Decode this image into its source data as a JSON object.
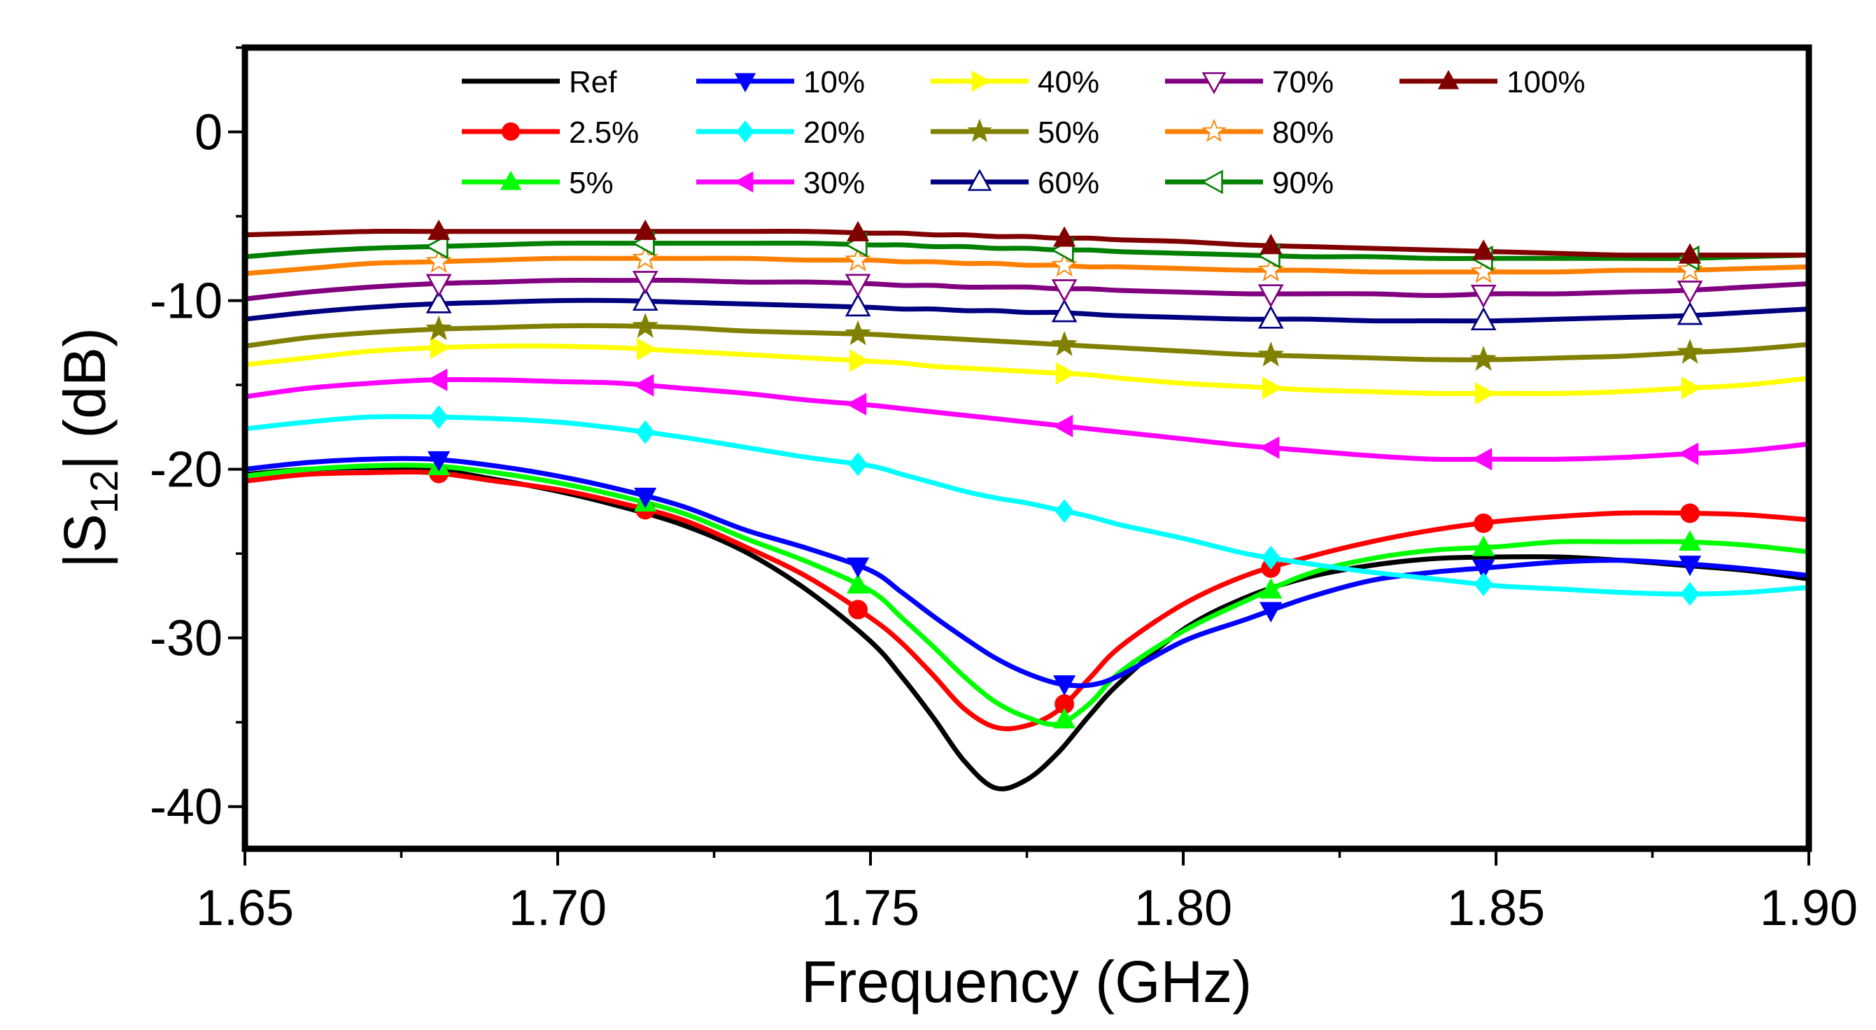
{
  "chart_data": {
    "type": "line",
    "xlabel": "Frequency (GHz)",
    "ylabel_prefix": "|S",
    "ylabel_sub": "12",
    "ylabel_suffix": "| (dB)",
    "xlim": [
      1.65,
      1.9
    ],
    "ylim": [
      -42.5,
      5
    ],
    "xticks": [
      1.65,
      1.7,
      1.75,
      1.8,
      1.85,
      1.9
    ],
    "xtick_labels": [
      "1.65",
      "1.70",
      "1.75",
      "1.80",
      "1.85",
      "1.90"
    ],
    "yticks": [
      0,
      -10,
      -20,
      -30,
      -40
    ],
    "ytick_labels": [
      "0",
      "-10",
      "-20",
      "-30",
      "-40"
    ],
    "x": [
      1.65,
      1.66,
      1.67,
      1.68,
      1.69,
      1.7,
      1.71,
      1.72,
      1.73,
      1.74,
      1.75,
      1.755,
      1.76,
      1.765,
      1.77,
      1.775,
      1.78,
      1.785,
      1.79,
      1.8,
      1.81,
      1.82,
      1.83,
      1.84,
      1.85,
      1.86,
      1.87,
      1.88,
      1.89,
      1.9
    ],
    "marker_x": [
      1.681,
      1.714,
      1.748,
      1.781,
      1.814,
      1.848,
      1.881
    ],
    "series": [
      {
        "name": "Ref",
        "color": "#000000",
        "marker": "none",
        "values": [
          -20.3,
          -20.0,
          -19.9,
          -20.0,
          -20.6,
          -21.3,
          -22.2,
          -23.3,
          -24.9,
          -27.2,
          -30.2,
          -32.3,
          -34.7,
          -37.3,
          -38.9,
          -38.4,
          -36.8,
          -34.6,
          -32.6,
          -29.5,
          -27.6,
          -26.4,
          -25.7,
          -25.3,
          -25.2,
          -25.2,
          -25.4,
          -25.7,
          -26.0,
          -26.5
        ]
      },
      {
        "name": "2.5%",
        "color": "#ff0000",
        "marker": "circle",
        "values": [
          -20.7,
          -20.3,
          -20.2,
          -20.2,
          -20.7,
          -21.2,
          -22.0,
          -23.0,
          -24.6,
          -26.4,
          -28.8,
          -30.3,
          -32.2,
          -34.2,
          -35.3,
          -35.2,
          -34.3,
          -32.4,
          -30.5,
          -28.0,
          -26.3,
          -25.2,
          -24.3,
          -23.6,
          -23.1,
          -22.8,
          -22.6,
          -22.6,
          -22.7,
          -23.0
        ]
      },
      {
        "name": "5%",
        "color": "#00ff00",
        "marker": "triangle-up",
        "values": [
          -20.4,
          -20.0,
          -19.8,
          -19.8,
          -20.2,
          -20.8,
          -21.6,
          -22.6,
          -24.1,
          -25.5,
          -27.2,
          -28.8,
          -30.5,
          -32.3,
          -33.8,
          -34.7,
          -35.1,
          -33.9,
          -32.0,
          -29.6,
          -27.8,
          -26.2,
          -25.3,
          -24.8,
          -24.6,
          -24.3,
          -24.3,
          -24.3,
          -24.5,
          -24.9
        ]
      },
      {
        "name": "10%",
        "color": "#0000ff",
        "marker": "triangle-down",
        "values": [
          -20.0,
          -19.6,
          -19.4,
          -19.4,
          -19.8,
          -20.4,
          -21.2,
          -22.2,
          -23.6,
          -24.7,
          -26.0,
          -27.3,
          -28.7,
          -30.0,
          -31.2,
          -32.1,
          -32.7,
          -32.8,
          -32.2,
          -30.2,
          -28.9,
          -27.6,
          -26.6,
          -26.1,
          -25.8,
          -25.5,
          -25.4,
          -25.6,
          -25.9,
          -26.3
        ]
      },
      {
        "name": "20%",
        "color": "#00ffff",
        "marker": "diamond",
        "values": [
          -17.6,
          -17.2,
          -16.9,
          -16.9,
          -17.0,
          -17.2,
          -17.6,
          -18.1,
          -18.7,
          -19.3,
          -19.8,
          -20.3,
          -20.8,
          -21.3,
          -21.7,
          -22.0,
          -22.4,
          -22.8,
          -23.3,
          -24.1,
          -25.0,
          -25.6,
          -26.1,
          -26.5,
          -26.9,
          -27.1,
          -27.3,
          -27.4,
          -27.3,
          -27.0
        ]
      },
      {
        "name": "30%",
        "color": "#ff00ff",
        "marker": "triangle-left",
        "values": [
          -15.7,
          -15.2,
          -14.9,
          -14.7,
          -14.7,
          -14.8,
          -14.9,
          -15.2,
          -15.5,
          -15.9,
          -16.2,
          -16.4,
          -16.6,
          -16.8,
          -17.0,
          -17.2,
          -17.4,
          -17.6,
          -17.8,
          -18.2,
          -18.6,
          -18.9,
          -19.2,
          -19.4,
          -19.4,
          -19.4,
          -19.3,
          -19.1,
          -18.9,
          -18.5
        ]
      },
      {
        "name": "40%",
        "color": "#ffff00",
        "marker": "triangle-right",
        "values": [
          -13.8,
          -13.4,
          -13.0,
          -12.8,
          -12.7,
          -12.7,
          -12.8,
          -13.0,
          -13.2,
          -13.4,
          -13.6,
          -13.7,
          -13.9,
          -14.0,
          -14.1,
          -14.2,
          -14.3,
          -14.4,
          -14.6,
          -14.9,
          -15.1,
          -15.3,
          -15.4,
          -15.5,
          -15.5,
          -15.5,
          -15.4,
          -15.2,
          -15.0,
          -14.6
        ]
      },
      {
        "name": "50%",
        "color": "#808000",
        "marker": "star",
        "values": [
          -12.7,
          -12.2,
          -11.9,
          -11.7,
          -11.6,
          -11.5,
          -11.5,
          -11.6,
          -11.8,
          -11.9,
          -12.0,
          -12.1,
          -12.2,
          -12.3,
          -12.4,
          -12.5,
          -12.6,
          -12.7,
          -12.8,
          -13.0,
          -13.2,
          -13.3,
          -13.4,
          -13.5,
          -13.5,
          -13.4,
          -13.3,
          -13.1,
          -12.9,
          -12.6
        ]
      },
      {
        "name": "60%",
        "color": "#000080",
        "marker": "triangle-up-open",
        "values": [
          -11.1,
          -10.7,
          -10.4,
          -10.2,
          -10.1,
          -10.0,
          -10.0,
          -10.1,
          -10.2,
          -10.3,
          -10.4,
          -10.5,
          -10.5,
          -10.6,
          -10.6,
          -10.7,
          -10.7,
          -10.8,
          -10.9,
          -11.0,
          -11.1,
          -11.1,
          -11.2,
          -11.2,
          -11.2,
          -11.1,
          -11.0,
          -10.9,
          -10.7,
          -10.5
        ]
      },
      {
        "name": "70%",
        "color": "#800080",
        "marker": "triangle-down-open",
        "values": [
          -9.9,
          -9.5,
          -9.2,
          -9.0,
          -8.9,
          -8.8,
          -8.8,
          -8.8,
          -8.9,
          -8.9,
          -9.0,
          -9.1,
          -9.1,
          -9.2,
          -9.2,
          -9.2,
          -9.3,
          -9.3,
          -9.4,
          -9.5,
          -9.6,
          -9.6,
          -9.6,
          -9.7,
          -9.6,
          -9.6,
          -9.5,
          -9.4,
          -9.2,
          -9.0
        ]
      },
      {
        "name": "80%",
        "color": "#ff8000",
        "marker": "star-open",
        "values": [
          -8.4,
          -8.1,
          -7.8,
          -7.7,
          -7.6,
          -7.5,
          -7.5,
          -7.5,
          -7.5,
          -7.6,
          -7.6,
          -7.7,
          -7.7,
          -7.8,
          -7.8,
          -7.9,
          -7.9,
          -8.0,
          -8.0,
          -8.1,
          -8.2,
          -8.2,
          -8.3,
          -8.3,
          -8.3,
          -8.3,
          -8.2,
          -8.2,
          -8.1,
          -8.0
        ]
      },
      {
        "name": "90%",
        "color": "#008000",
        "marker": "triangle-left-open",
        "values": [
          -7.4,
          -7.1,
          -6.9,
          -6.8,
          -6.7,
          -6.6,
          -6.6,
          -6.6,
          -6.6,
          -6.6,
          -6.7,
          -6.7,
          -6.8,
          -6.8,
          -6.9,
          -6.9,
          -7.0,
          -7.0,
          -7.1,
          -7.2,
          -7.3,
          -7.4,
          -7.4,
          -7.5,
          -7.5,
          -7.5,
          -7.5,
          -7.5,
          -7.4,
          -7.3
        ]
      },
      {
        "name": "100%",
        "color": "#800000",
        "marker": "triangle-up-filled-dark",
        "values": [
          -6.1,
          -6.0,
          -5.9,
          -5.9,
          -5.9,
          -5.9,
          -5.9,
          -5.9,
          -5.9,
          -5.9,
          -6.0,
          -6.0,
          -6.1,
          -6.1,
          -6.2,
          -6.2,
          -6.3,
          -6.3,
          -6.4,
          -6.5,
          -6.7,
          -6.8,
          -6.9,
          -7.0,
          -7.1,
          -7.2,
          -7.3,
          -7.3,
          -7.3,
          -7.3
        ]
      }
    ],
    "legend_order": [
      "Ref",
      "10%",
      "40%",
      "70%",
      "100%",
      "2.5%",
      "20%",
      "50%",
      "80%",
      "5%",
      "30%",
      "60%",
      "90%"
    ],
    "legend_position": "top-inside",
    "grid": false
  }
}
